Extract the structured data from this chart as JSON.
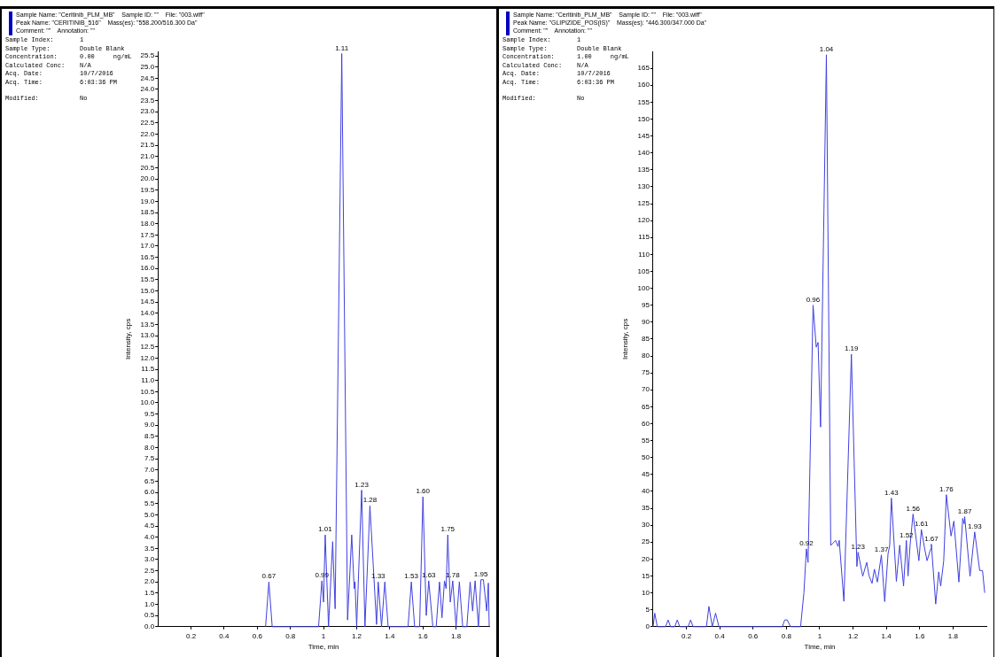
{
  "chart_data": [
    {
      "type": "line",
      "xlabel": "Time, min",
      "ylabel": "Intensity, cps",
      "xlim": [
        0,
        2
      ],
      "xticks": [
        0.2,
        0.4,
        0.6,
        0.8,
        1.0,
        1.2,
        1.4,
        1.6,
        1.8
      ],
      "ylim": [
        0,
        25.7
      ],
      "yticks": [
        {
          "value": 0,
          "label": "0.0"
        },
        0.5,
        {
          "value": 1,
          "label": "1.0"
        },
        1.5,
        {
          "value": 2,
          "label": "2.0"
        },
        2.5,
        {
          "value": 3,
          "label": "3.0"
        },
        3.5,
        {
          "value": 4,
          "label": "4.0"
        },
        4.5,
        {
          "value": 5,
          "label": "5.0"
        },
        5.5,
        {
          "value": 6,
          "label": "6.0"
        },
        6.5,
        {
          "value": 7,
          "label": "7.0"
        },
        7.5,
        {
          "value": 8,
          "label": "8.0"
        },
        8.5,
        {
          "value": 9,
          "label": "9.0"
        },
        9.5,
        {
          "value": 10,
          "label": "10.0"
        },
        10.5,
        {
          "value": 11,
          "label": "11.0"
        },
        11.5,
        {
          "value": 12,
          "label": "12.0"
        },
        12.5,
        {
          "value": 13,
          "label": "13.0"
        },
        13.5,
        {
          "value": 14,
          "label": "14.0"
        },
        14.5,
        {
          "value": 15,
          "label": "15.0"
        },
        15.5,
        {
          "value": 16,
          "label": "16.0"
        },
        16.5,
        {
          "value": 17,
          "label": "17.0"
        },
        17.5,
        {
          "value": 18,
          "label": "18.0"
        },
        18.5,
        {
          "value": 19,
          "label": "19.0"
        },
        19.5,
        {
          "value": 20,
          "label": "20.0"
        },
        20.5,
        {
          "value": 21,
          "label": "21.0"
        },
        21.5,
        {
          "value": 22,
          "label": "22.0"
        },
        22.5,
        {
          "value": 23,
          "label": "23.0"
        },
        23.5,
        {
          "value": 24,
          "label": "24.0"
        },
        24.5,
        {
          "value": 25,
          "label": "25.0"
        },
        25.5
      ],
      "grid": false,
      "legend": false,
      "marker": "none",
      "line_style": "solid",
      "x": [
        0.65,
        0.67,
        0.69,
        0.97,
        0.99,
        1.0,
        1.01,
        1.03,
        1.055,
        1.07,
        1.11,
        1.145,
        1.17,
        1.185,
        1.19,
        1.2,
        1.23,
        1.25,
        1.28,
        1.32,
        1.33,
        1.35,
        1.37,
        1.39,
        1.51,
        1.53,
        1.55,
        1.58,
        1.6,
        1.62,
        1.635,
        1.66,
        1.68,
        1.7,
        1.715,
        1.73,
        1.74,
        1.75,
        1.765,
        1.78,
        1.8,
        1.82,
        1.84,
        1.865,
        1.885,
        1.9,
        1.915,
        1.935,
        1.95,
        1.965,
        1.985,
        1.995,
        2.0
      ],
      "series": [
        {
          "color": "#4040e0",
          "values": [
            0,
            2.0,
            0,
            0,
            2.05,
            1.1,
            4.1,
            0,
            3.8,
            0.8,
            25.6,
            0.3,
            4.1,
            1.7,
            2.0,
            0,
            6.1,
            0,
            5.4,
            0.1,
            2.0,
            0,
            2.0,
            0,
            0,
            2.0,
            0,
            0,
            5.8,
            0.5,
            2.05,
            0,
            0,
            2.0,
            0.4,
            2.05,
            1.7,
            4.1,
            1.1,
            2.05,
            0,
            2.0,
            0,
            0,
            2.0,
            0.7,
            2.05,
            0,
            2.1,
            2.1,
            0.7,
            1.95,
            0
          ]
        }
      ],
      "annotations": [
        "Sample Name: \"Ceritinib_PLM_MB\"    Sample ID: \"\"    File: \"003.wiff\"",
        "Peak Name: \"CERITINIB_516\"    Mass(es): \"558.200/516.300 Da\"",
        "Comment: \"\"    Annotation: \"\"",
        "Sample Index:       1",
        "Sample Type:        Double Blank",
        "Concentration:      0.00     ng/mL",
        "Calculated Conc:    N/A",
        "Acq. Date:          10/7/2016",
        "Acq. Time:          6:03:36 PM",
        "Modified:           No",
        {
          "text": "0.67",
          "x": 0.67,
          "y": 2.0
        },
        {
          "text": "0.99",
          "x": 0.99,
          "y": 2.05
        },
        {
          "text": "1.01",
          "x": 1.01,
          "y": 4.1
        },
        {
          "text": "1.11",
          "x": 1.11,
          "y": 25.6
        },
        {
          "text": "1.23",
          "x": 1.23,
          "y": 6.1
        },
        {
          "text": "1.28",
          "x": 1.28,
          "y": 5.4
        },
        {
          "text": "1.33",
          "x": 1.33,
          "y": 2.0
        },
        {
          "text": "1.53",
          "x": 1.53,
          "y": 2.0
        },
        {
          "text": "1.60",
          "x": 1.6,
          "y": 5.8
        },
        {
          "text": "1.63",
          "x": 1.635,
          "y": 2.05
        },
        {
          "text": "1.75",
          "x": 1.75,
          "y": 4.1
        },
        {
          "text": "1.78",
          "x": 1.78,
          "y": 2.05
        },
        {
          "text": "1.95",
          "x": 1.95,
          "y": 2.1
        }
      ]
    },
    {
      "type": "line",
      "xlabel": "Time, min",
      "ylabel": "Intensity, cps",
      "xlim": [
        0,
        2
      ],
      "xticks": [
        0.2,
        0.4,
        0.6,
        0.8,
        1.0,
        1.2,
        1.4,
        1.6,
        1.8
      ],
      "ylim": [
        0,
        170
      ],
      "yticks": [
        0,
        5,
        10,
        15,
        20,
        25,
        30,
        35,
        40,
        45,
        50,
        55,
        60,
        65,
        70,
        75,
        80,
        85,
        90,
        95,
        100,
        105,
        110,
        115,
        120,
        125,
        130,
        135,
        140,
        145,
        150,
        155,
        160,
        165
      ],
      "grid": false,
      "legend": false,
      "marker": "none",
      "line_style": "solid",
      "x": [
        0,
        0.01,
        0.025,
        0.075,
        0.09,
        0.105,
        0.13,
        0.145,
        0.16,
        0.21,
        0.225,
        0.24,
        0.32,
        0.335,
        0.355,
        0.375,
        0.395,
        0.775,
        0.79,
        0.805,
        0.825,
        0.885,
        0.905,
        0.92,
        0.93,
        0.96,
        0.979,
        0.99,
        1.005,
        1.04,
        1.066,
        1.095,
        1.11,
        1.117,
        1.145,
        1.19,
        1.223,
        1.23,
        1.258,
        1.282,
        1.296,
        1.314,
        1.328,
        1.346,
        1.37,
        1.39,
        1.41,
        1.42,
        1.43,
        1.46,
        1.48,
        1.503,
        1.52,
        1.53,
        1.542,
        1.56,
        1.595,
        1.61,
        1.63,
        1.644,
        1.665,
        1.67,
        1.696,
        1.714,
        1.726,
        1.744,
        1.76,
        1.788,
        1.805,
        1.835,
        1.858,
        1.867,
        1.87,
        1.902,
        1.93,
        1.96,
        1.977,
        1.99
      ],
      "series": [
        {
          "color": "#4040e0",
          "values": [
            0,
            4,
            0,
            0,
            2,
            0,
            0,
            2,
            0,
            0,
            2,
            0,
            0,
            6,
            0,
            4,
            0,
            0,
            2,
            2,
            0,
            0,
            10,
            23,
            19,
            95,
            82.6,
            84,
            59,
            169,
            24,
            25.5,
            23.7,
            25.5,
            7.5,
            80.5,
            17.8,
            22,
            14.9,
            19,
            15,
            12.8,
            17,
            13.2,
            21.2,
            7.4,
            21.6,
            24,
            38,
            13.4,
            24.1,
            12,
            25.5,
            15,
            24,
            33.3,
            19.5,
            28.7,
            23,
            19.5,
            22.9,
            24.4,
            6.7,
            16.2,
            12,
            19.5,
            39,
            26.8,
            31.2,
            13.2,
            32,
            30.4,
            32.5,
            14.9,
            28,
            16.6,
            16.6,
            10
          ]
        }
      ],
      "annotations": [
        "Sample Name: \"Ceritinib_PLM_MB\"    Sample ID: \"\"    File: \"003.wiff\"",
        "Peak Name: \"GLIPIZIDE_POS(IS)\"    Mass(es): \"446.300/347.000 Da\"",
        "Comment: \"\"    Annotation: \"\"",
        "Sample Index:       1",
        "Sample Type:        Double Blank",
        "Concentration:      1.00     ng/mL",
        "Calculated Conc:    N/A",
        "Acq. Date:          10/7/2016",
        "Acq. Time:          6:03:36 PM",
        "Modified:           No",
        {
          "text": "0.92",
          "x": 0.92,
          "y": 23
        },
        {
          "text": "0.96",
          "x": 0.96,
          "y": 95
        },
        {
          "text": "1.04",
          "x": 1.04,
          "y": 169
        },
        {
          "text": "1.19",
          "x": 1.19,
          "y": 80.5
        },
        {
          "text": "1.23",
          "x": 1.23,
          "y": 22
        },
        {
          "text": "1.37",
          "x": 1.37,
          "y": 21.2
        },
        {
          "text": "1.43",
          "x": 1.43,
          "y": 38
        },
        {
          "text": "1.52",
          "x": 1.52,
          "y": 25.5
        },
        {
          "text": "1.56",
          "x": 1.56,
          "y": 33.3
        },
        {
          "text": "1.61",
          "x": 1.61,
          "y": 28.7
        },
        {
          "text": "1.67",
          "x": 1.67,
          "y": 24.4
        },
        {
          "text": "1.76",
          "x": 1.76,
          "y": 39
        },
        {
          "text": "1.87",
          "x": 1.87,
          "y": 32.5
        },
        {
          "text": "1.93",
          "x": 1.93,
          "y": 28
        }
      ]
    }
  ]
}
